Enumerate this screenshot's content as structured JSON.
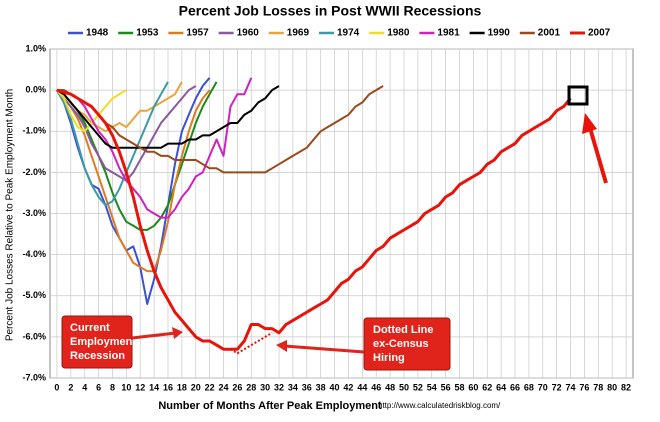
{
  "chart_data": {
    "type": "line",
    "title": "Percent Job Losses in Post WWII Recessions",
    "x_label": "Number of Months After Peak Employment",
    "y_label": "Percent Job Losses Relative to Peak Employment Month",
    "source": "http://www.calculatedriskblog.com/",
    "annotations": [
      {
        "lines": [
          "Current",
          "Employment",
          "Recession"
        ]
      },
      {
        "lines": [
          "Dotted Line",
          "ex-Census",
          "Hiring"
        ]
      }
    ],
    "xlim": [
      -1,
      83
    ],
    "ylim": [
      -7,
      1
    ],
    "grid": true,
    "legend": "top",
    "xticks": [
      0,
      2,
      4,
      6,
      8,
      10,
      12,
      14,
      16,
      18,
      20,
      22,
      24,
      26,
      28,
      30,
      32,
      34,
      36,
      38,
      40,
      42,
      44,
      46,
      48,
      50,
      52,
      54,
      56,
      58,
      60,
      62,
      64,
      66,
      68,
      70,
      72,
      74,
      76,
      78,
      80,
      82
    ],
    "yticks": [
      {
        "value": 1,
        "label": "1.0%"
      },
      {
        "value": 0,
        "label": "0.0%"
      },
      {
        "value": -1,
        "label": "-1.0%"
      },
      {
        "value": -2,
        "label": "-2.0%"
      },
      {
        "value": -3,
        "label": "-3.0%"
      },
      {
        "value": -4,
        "label": "-4.0%"
      },
      {
        "value": -5,
        "label": "-5.0%"
      },
      {
        "value": -6,
        "label": "-6.0%"
      },
      {
        "value": -7,
        "label": "-7.0%"
      }
    ],
    "x": [
      0,
      1,
      2,
      3,
      4,
      5,
      6,
      7,
      8,
      9,
      10,
      11,
      12,
      13,
      14,
      15,
      16,
      17,
      18,
      19,
      20,
      21,
      22,
      23,
      24,
      25,
      26,
      27,
      28,
      29,
      30,
      31,
      32,
      33,
      34,
      35,
      36,
      37,
      38,
      39,
      40,
      41,
      42,
      43,
      44,
      45,
      46,
      47,
      48,
      49,
      50,
      51,
      52,
      53,
      54,
      55,
      56,
      57,
      58,
      59,
      60,
      61,
      62,
      63,
      64,
      65,
      66,
      67,
      68,
      69,
      70,
      71,
      72,
      73,
      74
    ],
    "series": [
      {
        "name": "1948",
        "color": "#3b50d6",
        "values": [
          0,
          -0.3,
          -0.8,
          -1.4,
          -1.9,
          -2.3,
          -2.4,
          -2.8,
          -3.3,
          -3.6,
          -3.9,
          -3.8,
          -4.3,
          -5.2,
          -4.6,
          -3.8,
          -2.8,
          -1.8,
          -1.0,
          -0.6,
          -0.2,
          0.1,
          0.3,
          null,
          null,
          null,
          null,
          null,
          null,
          null,
          null,
          null,
          null,
          null,
          null,
          null,
          null,
          null,
          null,
          null,
          null,
          null,
          null,
          null,
          null,
          null,
          null,
          null,
          null,
          null,
          null,
          null,
          null,
          null,
          null,
          null,
          null,
          null,
          null,
          null,
          null,
          null,
          null,
          null,
          null,
          null,
          null,
          null,
          null,
          null,
          null,
          null,
          null,
          null,
          null
        ]
      },
      {
        "name": "1953",
        "color": "#1a8a1a",
        "values": [
          0,
          -0.1,
          -0.3,
          -0.5,
          -0.8,
          -1.2,
          -1.6,
          -2.0,
          -2.5,
          -2.9,
          -3.2,
          -3.3,
          -3.4,
          -3.4,
          -3.3,
          -3.1,
          -2.8,
          -2.3,
          -1.8,
          -1.3,
          -0.8,
          -0.4,
          -0.1,
          0.2,
          null,
          null,
          null,
          null,
          null,
          null,
          null,
          null,
          null,
          null,
          null,
          null,
          null,
          null,
          null,
          null,
          null,
          null,
          null,
          null,
          null,
          null,
          null,
          null,
          null,
          null,
          null,
          null,
          null,
          null,
          null,
          null,
          null,
          null,
          null,
          null,
          null,
          null,
          null,
          null,
          null,
          null,
          null,
          null,
          null,
          null,
          null,
          null,
          null,
          null,
          null
        ]
      },
      {
        "name": "1957",
        "color": "#e07a1f",
        "values": [
          0,
          -0.2,
          -0.4,
          -0.7,
          -1.1,
          -1.6,
          -2.1,
          -2.6,
          -3.1,
          -3.6,
          -3.9,
          -4.2,
          -4.3,
          -4.4,
          -4.4,
          -3.9,
          -3.2,
          -2.3,
          -1.6,
          -1.0,
          -0.5,
          -0.2,
          0,
          null,
          null,
          null,
          null,
          null,
          null,
          null,
          null,
          null,
          null,
          null,
          null,
          null,
          null,
          null,
          null,
          null,
          null,
          null,
          null,
          null,
          null,
          null,
          null,
          null,
          null,
          null,
          null,
          null,
          null,
          null,
          null,
          null,
          null,
          null,
          null,
          null,
          null,
          null,
          null,
          null,
          null,
          null,
          null,
          null,
          null,
          null,
          null,
          null,
          null,
          null,
          null
        ]
      },
      {
        "name": "1960",
        "color": "#8a5aa0",
        "values": [
          0,
          -0.2,
          -0.4,
          -0.6,
          -0.9,
          -1.3,
          -1.6,
          -1.9,
          -2.0,
          -2.1,
          -2.2,
          -2.0,
          -1.7,
          -1.4,
          -1.1,
          -0.8,
          -0.6,
          -0.4,
          -0.2,
          0,
          0.1,
          null,
          null,
          null,
          null,
          null,
          null,
          null,
          null,
          null,
          null,
          null,
          null,
          null,
          null,
          null,
          null,
          null,
          null,
          null,
          null,
          null,
          null,
          null,
          null,
          null,
          null,
          null,
          null,
          null,
          null,
          null,
          null,
          null,
          null,
          null,
          null,
          null,
          null,
          null,
          null,
          null,
          null,
          null,
          null,
          null,
          null,
          null,
          null,
          null,
          null,
          null,
          null,
          null,
          null
        ]
      },
      {
        "name": "1969",
        "color": "#e8a53a",
        "values": [
          0,
          -0.1,
          -0.3,
          -0.5,
          -0.6,
          -0.8,
          -0.9,
          -1.0,
          -0.9,
          -0.8,
          -0.9,
          -0.7,
          -0.5,
          -0.5,
          -0.4,
          -0.3,
          -0.2,
          -0.1,
          0.2,
          null,
          null,
          null,
          null,
          null,
          null,
          null,
          null,
          null,
          null,
          null,
          null,
          null,
          null,
          null,
          null,
          null,
          null,
          null,
          null,
          null,
          null,
          null,
          null,
          null,
          null,
          null,
          null,
          null,
          null,
          null,
          null,
          null,
          null,
          null,
          null,
          null,
          null,
          null,
          null,
          null,
          null,
          null,
          null,
          null,
          null,
          null,
          null,
          null,
          null,
          null,
          null,
          null,
          null,
          null,
          null
        ]
      },
      {
        "name": "1974",
        "color": "#3a9aa8",
        "values": [
          0,
          -0.3,
          -0.7,
          -1.3,
          -1.9,
          -2.3,
          -2.6,
          -2.8,
          -2.7,
          -2.4,
          -2.0,
          -1.6,
          -1.2,
          -0.8,
          -0.4,
          -0.1,
          0.2,
          null,
          null,
          null,
          null,
          null,
          null,
          null,
          null,
          null,
          null,
          null,
          null,
          null,
          null,
          null,
          null,
          null,
          null,
          null,
          null,
          null,
          null,
          null,
          null,
          null,
          null,
          null,
          null,
          null,
          null,
          null,
          null,
          null,
          null,
          null,
          null,
          null,
          null,
          null,
          null,
          null,
          null,
          null,
          null,
          null,
          null,
          null,
          null,
          null,
          null,
          null,
          null,
          null,
          null,
          null,
          null,
          null,
          null
        ]
      },
      {
        "name": "1980",
        "color": "#eedd22",
        "values": [
          0,
          -0.2,
          -0.6,
          -0.9,
          -1.0,
          -0.8,
          -0.6,
          -0.4,
          -0.2,
          -0.1,
          0,
          null,
          null,
          null,
          null,
          null,
          null,
          null,
          null,
          null,
          null,
          null,
          null,
          null,
          null,
          null,
          null,
          null,
          null,
          null,
          null,
          null,
          null,
          null,
          null,
          null,
          null,
          null,
          null,
          null,
          null,
          null,
          null,
          null,
          null,
          null,
          null,
          null,
          null,
          null,
          null,
          null,
          null,
          null,
          null,
          null,
          null,
          null,
          null,
          null,
          null,
          null,
          null,
          null,
          null,
          null,
          null,
          null,
          null,
          null,
          null,
          null,
          null,
          null,
          null
        ]
      },
      {
        "name": "1981",
        "color": "#d020c0",
        "values": [
          0,
          0,
          -0.1,
          -0.2,
          -0.4,
          -0.7,
          -1.0,
          -1.2,
          -1.5,
          -1.9,
          -2.2,
          -2.4,
          -2.6,
          -2.9,
          -3.0,
          -3.1,
          -3.1,
          -2.9,
          -2.6,
          -2.4,
          -2.1,
          -2.0,
          -1.6,
          -1.2,
          -1.6,
          -0.4,
          -0.1,
          -0.1,
          0.3,
          null,
          null,
          null,
          null,
          null,
          null,
          null,
          null,
          null,
          null,
          null,
          null,
          null,
          null,
          null,
          null,
          null,
          null,
          null,
          null,
          null,
          null,
          null,
          null,
          null,
          null,
          null,
          null,
          null,
          null,
          null,
          null,
          null,
          null,
          null,
          null,
          null,
          null,
          null,
          null,
          null,
          null,
          null,
          null,
          null,
          null
        ]
      },
      {
        "name": "1990",
        "color": "#000000",
        "values": [
          0,
          -0.1,
          -0.3,
          -0.5,
          -0.7,
          -0.9,
          -1.1,
          -1.3,
          -1.4,
          -1.4,
          -1.4,
          -1.4,
          -1.4,
          -1.4,
          -1.4,
          -1.4,
          -1.3,
          -1.3,
          -1.3,
          -1.2,
          -1.2,
          -1.1,
          -1.1,
          -1.0,
          -0.9,
          -0.8,
          -0.8,
          -0.6,
          -0.5,
          -0.3,
          -0.2,
          0,
          0.1,
          null,
          null,
          null,
          null,
          null,
          null,
          null,
          null,
          null,
          null,
          null,
          null,
          null,
          null,
          null,
          null,
          null,
          null,
          null,
          null,
          null,
          null,
          null,
          null,
          null,
          null,
          null,
          null,
          null,
          null,
          null,
          null,
          null,
          null,
          null,
          null,
          null,
          null,
          null,
          null,
          null,
          null
        ]
      },
      {
        "name": "2001",
        "color": "#9a4a1a",
        "values": [
          0,
          0,
          -0.1,
          -0.2,
          -0.3,
          -0.4,
          -0.6,
          -0.8,
          -0.9,
          -1.1,
          -1.2,
          -1.3,
          -1.4,
          -1.5,
          -1.5,
          -1.6,
          -1.6,
          -1.7,
          -1.7,
          -1.7,
          -1.7,
          -1.8,
          -1.9,
          -1.9,
          -2.0,
          -2.0,
          -2.0,
          -2.0,
          -2.0,
          -2.0,
          -2.0,
          -1.9,
          -1.8,
          -1.7,
          -1.6,
          -1.5,
          -1.4,
          -1.2,
          -1.0,
          -0.9,
          -0.8,
          -0.7,
          -0.6,
          -0.4,
          -0.3,
          -0.1,
          0,
          0.1,
          null,
          null,
          null,
          null,
          null,
          null,
          null,
          null,
          null,
          null,
          null,
          null,
          null,
          null,
          null,
          null,
          null,
          null,
          null,
          null,
          null,
          null,
          null,
          null,
          null,
          null,
          null
        ]
      },
      {
        "name": "2007",
        "color": "#e8140c",
        "width": 3,
        "values": [
          0,
          -0.05,
          -0.1,
          -0.2,
          -0.3,
          -0.4,
          -0.6,
          -0.8,
          -1.1,
          -1.5,
          -2.0,
          -2.6,
          -3.3,
          -3.9,
          -4.4,
          -4.8,
          -5.1,
          -5.4,
          -5.6,
          -5.8,
          -6.0,
          -6.1,
          -6.1,
          -6.2,
          -6.3,
          -6.3,
          -6.3,
          -6.1,
          -5.7,
          -5.7,
          -5.8,
          -5.8,
          -5.9,
          -5.7,
          -5.6,
          -5.5,
          -5.4,
          -5.3,
          -5.2,
          -5.1,
          -4.9,
          -4.7,
          -4.6,
          -4.4,
          -4.3,
          -4.1,
          -3.9,
          -3.8,
          -3.6,
          -3.5,
          -3.4,
          -3.3,
          -3.2,
          -3.0,
          -2.9,
          -2.8,
          -2.6,
          -2.5,
          -2.3,
          -2.2,
          -2.1,
          -2.0,
          -1.8,
          -1.7,
          -1.5,
          -1.4,
          -1.3,
          -1.1,
          -1.0,
          -0.9,
          -0.8,
          -0.7,
          -0.5,
          -0.4,
          -0.2
        ]
      },
      {
        "color": "#e8140c",
        "dashed": true,
        "values": [
          null,
          null,
          null,
          null,
          null,
          null,
          null,
          null,
          null,
          null,
          null,
          null,
          null,
          null,
          null,
          null,
          null,
          null,
          null,
          null,
          null,
          null,
          null,
          null,
          null,
          -6.3,
          -6.4,
          -6.3,
          -6.2,
          -6.1,
          -6.0,
          -5.9,
          null,
          null,
          null,
          null,
          null,
          null,
          null,
          null,
          null,
          null,
          null,
          null,
          null,
          null,
          null,
          null,
          null,
          null,
          null,
          null,
          null,
          null,
          null,
          null,
          null,
          null,
          null,
          null,
          null,
          null,
          null,
          null,
          null,
          null,
          null,
          null,
          null,
          null,
          null,
          null,
          null,
          null,
          null
        ]
      }
    ]
  }
}
